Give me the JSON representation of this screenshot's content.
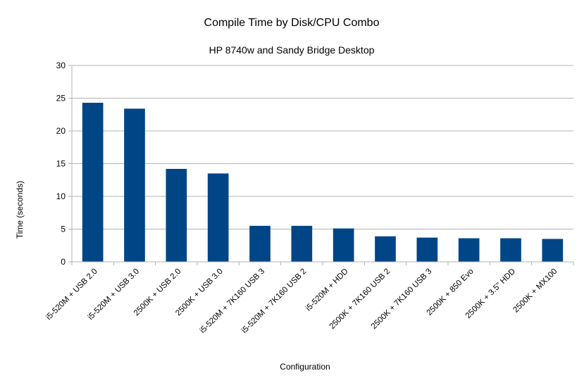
{
  "chart_data": {
    "type": "bar",
    "title": "Compile Time by Disk/CPU Combo",
    "subtitle": "HP 8740w and Sandy Bridge Desktop",
    "xlabel": "Configuration",
    "ylabel": "Time (seconds)",
    "ylim": [
      0,
      30
    ],
    "yticks": [
      0,
      5,
      10,
      15,
      20,
      25,
      30
    ],
    "grid": true,
    "legend": "none",
    "bar_color": "#004586",
    "categories": [
      "i5-520M + USB 2.0",
      "i5-520M + USB 3.0",
      "2500K + USB 2.0",
      "2500K + USB 3.0",
      "i5-520M + 7K160 USB 3",
      "i5-520M + 7K160 USB 2",
      "i5-520M + HDD",
      "2500K + 7K160 USB 2",
      "2500K + 7K160 USB 3",
      "2500K + 850 Evo",
      "2500K + 3.5\" HDD",
      "2500K + MX100"
    ],
    "values": [
      24.3,
      23.4,
      14.2,
      13.5,
      5.5,
      5.5,
      5.1,
      3.9,
      3.7,
      3.6,
      3.6,
      3.5
    ]
  }
}
